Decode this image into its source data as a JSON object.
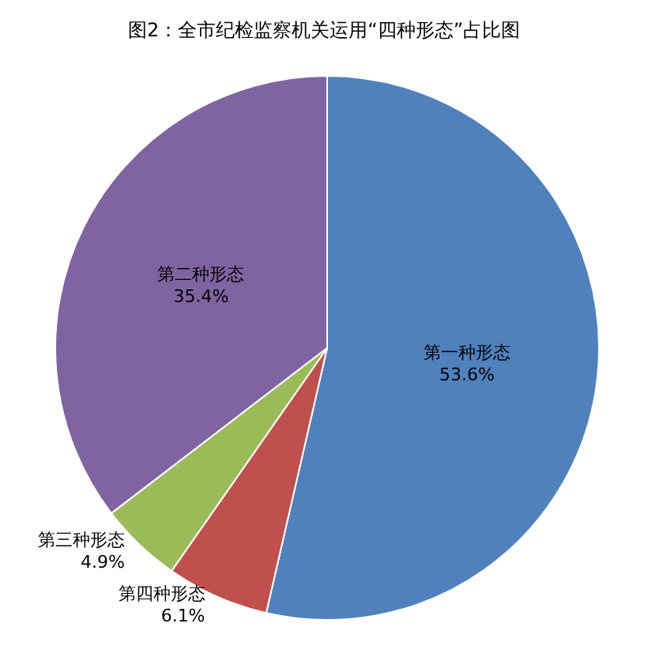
{
  "chart_data": {
    "type": "pie",
    "title": "图2：全市纪检监察机关运用“四种形态”占比图",
    "categories": [
      "第一种形态",
      "第四种形态",
      "第三种形态",
      "第二种形态"
    ],
    "values": [
      53.6,
      6.1,
      4.9,
      35.4
    ],
    "colors": [
      "#4f81bd",
      "#c0504d",
      "#9bbb59",
      "#8064a2"
    ],
    "value_labels": [
      "53.6%",
      "6.1%",
      "4.9%",
      "35.4%"
    ],
    "legend": false
  }
}
